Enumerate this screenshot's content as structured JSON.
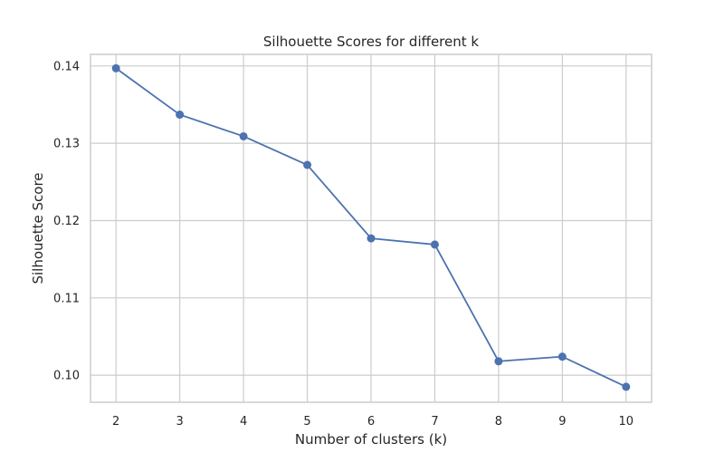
{
  "chart_data": {
    "type": "line",
    "title": "Silhouette Scores for different k",
    "xlabel": "Number of clusters (k)",
    "ylabel": "Silhouette Score",
    "x": [
      2,
      3,
      4,
      5,
      6,
      7,
      8,
      9,
      10
    ],
    "x_tick_labels": [
      "2",
      "3",
      "4",
      "5",
      "6",
      "7",
      "8",
      "9",
      "10"
    ],
    "series": [
      {
        "values": [
          0.1397,
          0.1337,
          0.1309,
          0.1272,
          0.1177,
          0.1169,
          0.1018,
          0.1024,
          0.0985
        ],
        "marker": "circle",
        "color": "#4c72b0"
      }
    ],
    "y_ticks": [
      0.1,
      0.11,
      0.12,
      0.13,
      0.14
    ],
    "y_tick_labels": [
      "0.10",
      "0.11",
      "0.12",
      "0.13",
      "0.14"
    ],
    "xlim": [
      1.6,
      10.4
    ],
    "ylim": [
      0.0965,
      0.1415
    ],
    "grid": true,
    "legend": "none"
  }
}
